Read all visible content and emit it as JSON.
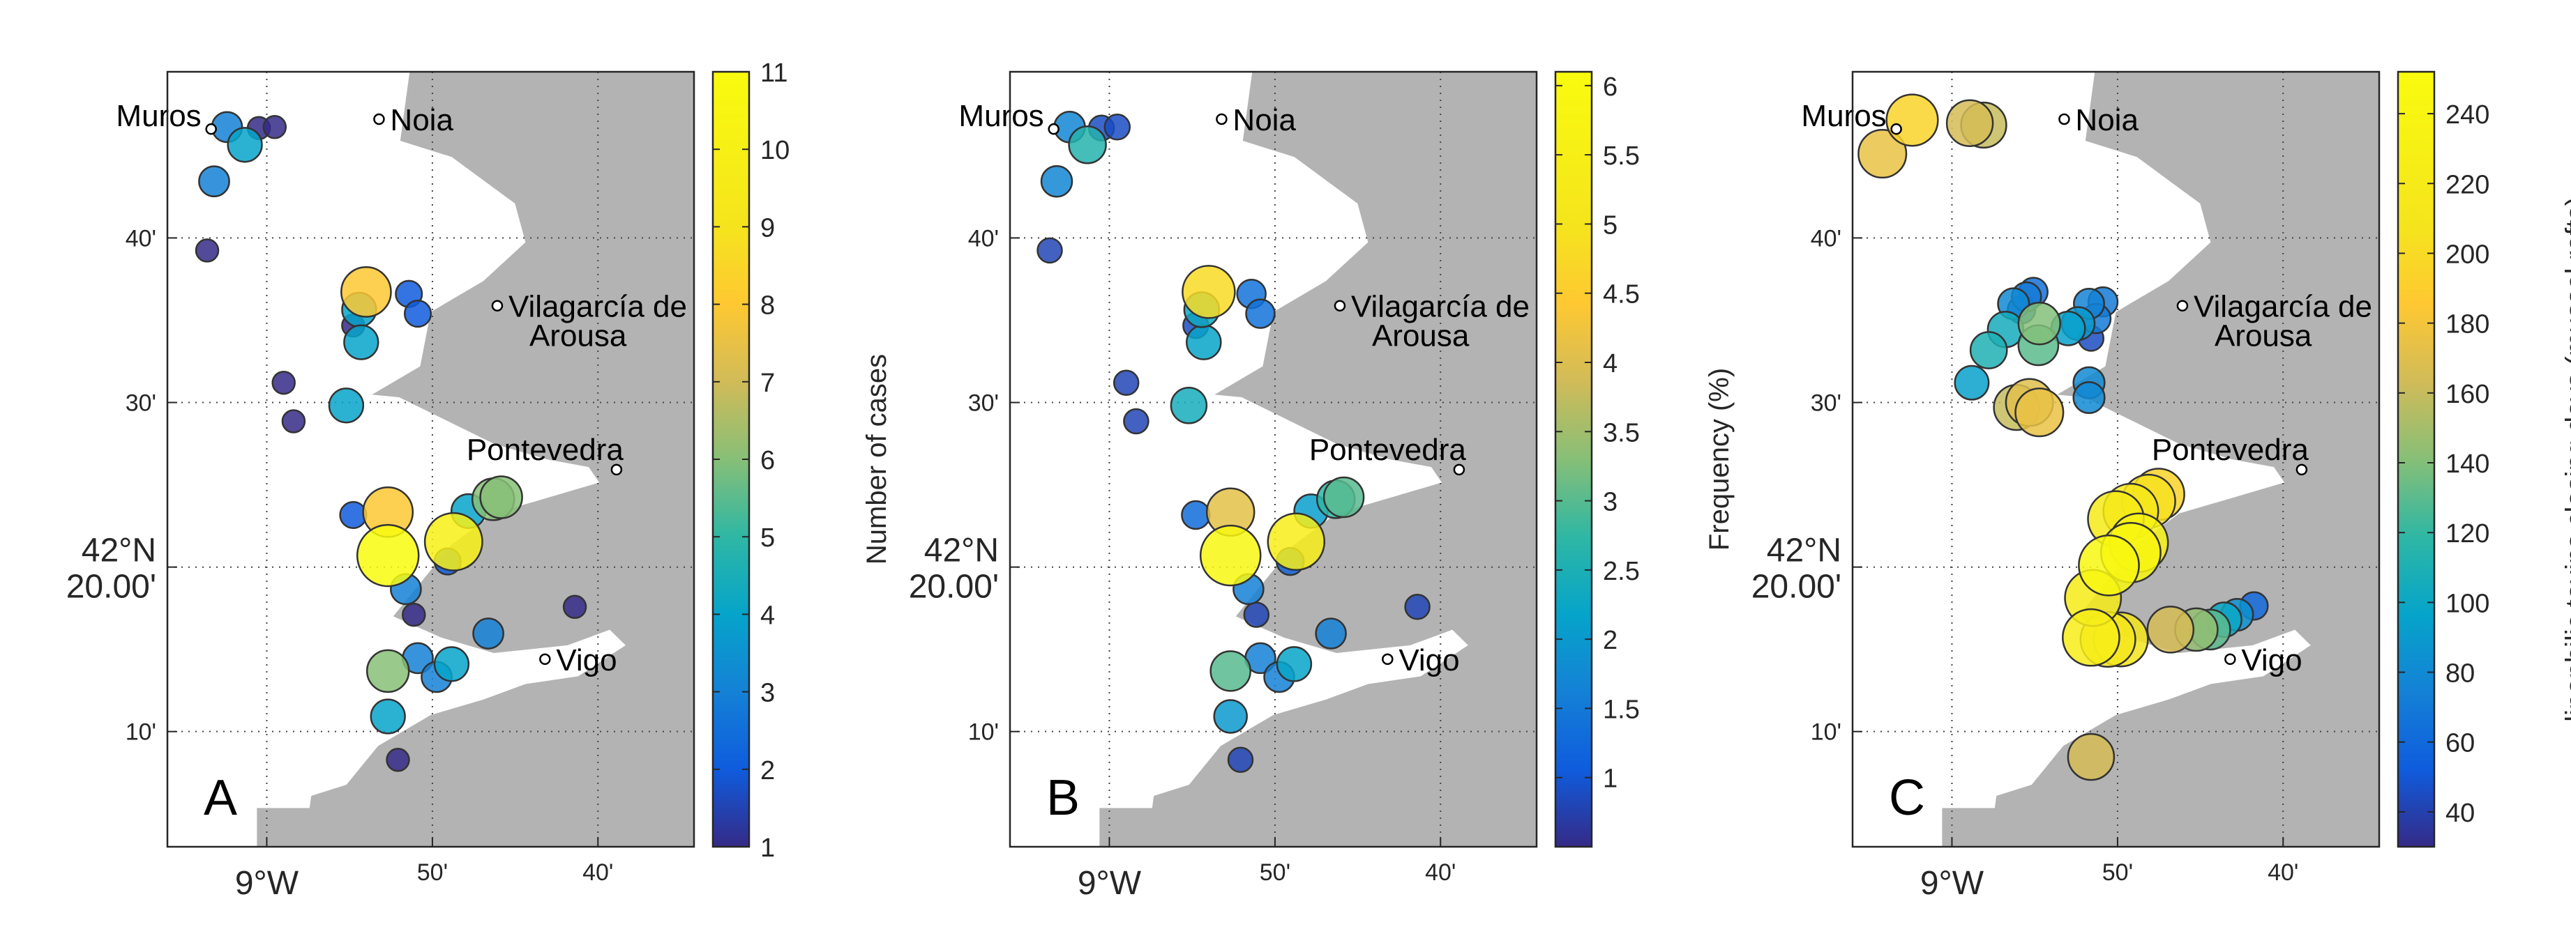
{
  "axes": {
    "lon_ticks": [
      "9°W",
      "50'",
      "40'"
    ],
    "lat_ticks": [
      "10'",
      "42°N\n20.00'",
      "30'",
      "40'"
    ],
    "lon_tick_values": [
      -9.0,
      -8.8333,
      -8.6667
    ],
    "lat_tick_values": [
      42.1667,
      42.3333,
      42.5,
      42.6667
    ],
    "xlim": [
      -9.1,
      -8.57
    ],
    "ylim": [
      42.05,
      42.835
    ],
    "grid": true,
    "land_color": "#b3b3b3",
    "sea_color": "#ffffff"
  },
  "towns": [
    {
      "name": "Muros",
      "lon": -9.056,
      "lat": 42.777,
      "label_side": "left"
    },
    {
      "name": "Noia",
      "lon": -8.887,
      "lat": 42.787,
      "label_side": "right"
    },
    {
      "name": "Vilagarcía de",
      "name2": "Arousa",
      "lon": -8.768,
      "lat": 42.598,
      "label_side": "right"
    },
    {
      "name": "Pontevedra",
      "lon": -8.648,
      "lat": 42.432,
      "label_side": "left-above"
    },
    {
      "name": "Vigo",
      "lon": -8.72,
      "lat": 42.24,
      "label_side": "right"
    }
  ],
  "chart_data": [
    {
      "type": "scatter",
      "panel": "A",
      "colorbar_label": "Number of cases",
      "colorbar_ticks": [
        1,
        2,
        3,
        4,
        5,
        6,
        7,
        8,
        9,
        10,
        11
      ],
      "clim": [
        1,
        11
      ],
      "points": [
        {
          "lon": -9.04,
          "lat": 42.779,
          "v": 3
        },
        {
          "lon": -9.022,
          "lat": 42.761,
          "v": 4
        },
        {
          "lon": -9.008,
          "lat": 42.778,
          "v": 1
        },
        {
          "lon": -8.992,
          "lat": 42.779,
          "v": 1
        },
        {
          "lon": -9.053,
          "lat": 42.724,
          "v": 3
        },
        {
          "lon": -9.06,
          "lat": 42.654,
          "v": 1
        },
        {
          "lon": -8.9,
          "lat": 42.612,
          "v": 8
        },
        {
          "lon": -8.907,
          "lat": 42.594,
          "v": 4
        },
        {
          "lon": -8.913,
          "lat": 42.578,
          "v": 1
        },
        {
          "lon": -8.905,
          "lat": 42.561,
          "v": 4
        },
        {
          "lon": -8.857,
          "lat": 42.61,
          "v": 2
        },
        {
          "lon": -8.848,
          "lat": 42.59,
          "v": 2
        },
        {
          "lon": -8.983,
          "lat": 42.52,
          "v": 1
        },
        {
          "lon": -8.973,
          "lat": 42.481,
          "v": 1
        },
        {
          "lon": -8.92,
          "lat": 42.497,
          "v": 4
        },
        {
          "lon": -8.913,
          "lat": 42.386,
          "v": 2
        },
        {
          "lon": -8.878,
          "lat": 42.389,
          "v": 8
        },
        {
          "lon": -8.878,
          "lat": 42.345,
          "v": 11
        },
        {
          "lon": -8.812,
          "lat": 42.359,
          "v": 10
        },
        {
          "lon": -8.818,
          "lat": 42.339,
          "v": 2
        },
        {
          "lon": -8.797,
          "lat": 42.39,
          "v": 4
        },
        {
          "lon": -8.772,
          "lat": 42.402,
          "v": 6
        },
        {
          "lon": -8.764,
          "lat": 42.404,
          "v": 6
        },
        {
          "lon": -8.86,
          "lat": 42.311,
          "v": 3
        },
        {
          "lon": -8.852,
          "lat": 42.285,
          "v": 1
        },
        {
          "lon": -8.777,
          "lat": 42.266,
          "v": 3
        },
        {
          "lon": -8.69,
          "lat": 42.293,
          "v": 1
        },
        {
          "lon": -8.878,
          "lat": 42.228,
          "v": 6
        },
        {
          "lon": -8.848,
          "lat": 42.241,
          "v": 3
        },
        {
          "lon": -8.829,
          "lat": 42.222,
          "v": 3
        },
        {
          "lon": -8.814,
          "lat": 42.235,
          "v": 4
        },
        {
          "lon": -8.878,
          "lat": 42.182,
          "v": 4
        },
        {
          "lon": -8.868,
          "lat": 42.138,
          "v": 1
        }
      ]
    },
    {
      "type": "scatter",
      "panel": "B",
      "colorbar_label": "Frequency (%)",
      "colorbar_ticks": [
        1,
        1.5,
        2,
        2.5,
        3,
        3.5,
        4,
        4.5,
        5,
        5.5,
        6
      ],
      "clim": [
        0.5,
        6.1
      ],
      "points": [
        {
          "lon": -9.04,
          "lat": 42.779,
          "v": 1.7
        },
        {
          "lon": -9.022,
          "lat": 42.761,
          "v": 2.6
        },
        {
          "lon": -9.008,
          "lat": 42.778,
          "v": 0.9
        },
        {
          "lon": -8.992,
          "lat": 42.779,
          "v": 0.9
        },
        {
          "lon": -9.053,
          "lat": 42.724,
          "v": 1.7
        },
        {
          "lon": -9.06,
          "lat": 42.654,
          "v": 0.8
        },
        {
          "lon": -8.9,
          "lat": 42.612,
          "v": 4.8
        },
        {
          "lon": -8.907,
          "lat": 42.594,
          "v": 2.3
        },
        {
          "lon": -8.913,
          "lat": 42.578,
          "v": 0.9
        },
        {
          "lon": -8.905,
          "lat": 42.561,
          "v": 2.2
        },
        {
          "lon": -8.857,
          "lat": 42.61,
          "v": 1.4
        },
        {
          "lon": -8.848,
          "lat": 42.59,
          "v": 1.4
        },
        {
          "lon": -8.983,
          "lat": 42.52,
          "v": 0.8
        },
        {
          "lon": -8.973,
          "lat": 42.481,
          "v": 0.8
        },
        {
          "lon": -8.92,
          "lat": 42.497,
          "v": 2.4
        },
        {
          "lon": -8.913,
          "lat": 42.386,
          "v": 1.3
        },
        {
          "lon": -8.878,
          "lat": 42.389,
          "v": 4.1
        },
        {
          "lon": -8.878,
          "lat": 42.345,
          "v": 5.9
        },
        {
          "lon": -8.812,
          "lat": 42.359,
          "v": 5.4
        },
        {
          "lon": -8.818,
          "lat": 42.339,
          "v": 1.2
        },
        {
          "lon": -8.797,
          "lat": 42.39,
          "v": 2.1
        },
        {
          "lon": -8.772,
          "lat": 42.402,
          "v": 2.7
        },
        {
          "lon": -8.764,
          "lat": 42.404,
          "v": 3.0
        },
        {
          "lon": -8.86,
          "lat": 42.311,
          "v": 1.6
        },
        {
          "lon": -8.852,
          "lat": 42.285,
          "v": 0.8
        },
        {
          "lon": -8.777,
          "lat": 42.266,
          "v": 1.6
        },
        {
          "lon": -8.69,
          "lat": 42.293,
          "v": 0.8
        },
        {
          "lon": -8.878,
          "lat": 42.228,
          "v": 3.0
        },
        {
          "lon": -8.848,
          "lat": 42.241,
          "v": 1.6
        },
        {
          "lon": -8.829,
          "lat": 42.222,
          "v": 1.6
        },
        {
          "lon": -8.814,
          "lat": 42.235,
          "v": 2.2
        },
        {
          "lon": -8.878,
          "lat": 42.182,
          "v": 2.0
        },
        {
          "lon": -8.868,
          "lat": 42.138,
          "v": 0.8
        }
      ]
    },
    {
      "type": "scatter",
      "panel": "C",
      "colorbar_label": "lipophilic toxins closing days (mussel rafts)",
      "colorbar_ticks": [
        40,
        60,
        80,
        100,
        120,
        140,
        160,
        180,
        200,
        220,
        240
      ],
      "clim": [
        30,
        252
      ],
      "points": [
        {
          "lon": -9.04,
          "lat": 42.786,
          "v": 195
        },
        {
          "lon": -9.07,
          "lat": 42.752,
          "v": 175
        },
        {
          "lon": -8.982,
          "lat": 42.783,
          "v": 165
        },
        {
          "lon": -8.968,
          "lat": 42.781,
          "v": 160
        },
        {
          "lon": -8.98,
          "lat": 42.52,
          "v": 95
        },
        {
          "lon": -8.963,
          "lat": 42.553,
          "v": 110
        },
        {
          "lon": -8.946,
          "lat": 42.574,
          "v": 105
        },
        {
          "lon": -8.938,
          "lat": 42.6,
          "v": 80
        },
        {
          "lon": -8.925,
          "lat": 42.607,
          "v": 70
        },
        {
          "lon": -8.918,
          "lat": 42.612,
          "v": 65
        },
        {
          "lon": -8.93,
          "lat": 42.594,
          "v": 60
        },
        {
          "lon": -8.912,
          "lat": 42.58,
          "v": 140
        },
        {
          "lon": -8.913,
          "lat": 42.558,
          "v": 130
        },
        {
          "lon": -8.883,
          "lat": 42.575,
          "v": 95
        },
        {
          "lon": -8.873,
          "lat": 42.58,
          "v": 90
        },
        {
          "lon": -8.862,
          "lat": 42.6,
          "v": 75
        },
        {
          "lon": -8.848,
          "lat": 42.602,
          "v": 70
        },
        {
          "lon": -8.855,
          "lat": 42.585,
          "v": 70
        },
        {
          "lon": -8.86,
          "lat": 42.565,
          "v": 45
        },
        {
          "lon": -8.862,
          "lat": 42.52,
          "v": 80
        },
        {
          "lon": -8.862,
          "lat": 42.505,
          "v": 80
        },
        {
          "lon": -8.935,
          "lat": 42.495,
          "v": 160
        },
        {
          "lon": -8.922,
          "lat": 42.5,
          "v": 170
        },
        {
          "lon": -8.912,
          "lat": 42.49,
          "v": 175
        },
        {
          "lon": -8.792,
          "lat": 42.407,
          "v": 195
        },
        {
          "lon": -8.802,
          "lat": 42.4,
          "v": 205
        },
        {
          "lon": -8.82,
          "lat": 42.39,
          "v": 215
        },
        {
          "lon": -8.835,
          "lat": 42.382,
          "v": 220
        },
        {
          "lon": -8.812,
          "lat": 42.358,
          "v": 235
        },
        {
          "lon": -8.82,
          "lat": 42.348,
          "v": 242
        },
        {
          "lon": -8.842,
          "lat": 42.335,
          "v": 245
        },
        {
          "lon": -8.858,
          "lat": 42.302,
          "v": 222
        },
        {
          "lon": -8.86,
          "lat": 42.262,
          "v": 225
        },
        {
          "lon": -8.843,
          "lat": 42.26,
          "v": 215
        },
        {
          "lon": -8.83,
          "lat": 42.26,
          "v": 210
        },
        {
          "lon": -8.78,
          "lat": 42.27,
          "v": 165
        },
        {
          "lon": -8.754,
          "lat": 42.27,
          "v": 145
        },
        {
          "lon": -8.74,
          "lat": 42.27,
          "v": 130
        },
        {
          "lon": -8.726,
          "lat": 42.28,
          "v": 100
        },
        {
          "lon": -8.713,
          "lat": 42.285,
          "v": 85
        },
        {
          "lon": -8.696,
          "lat": 42.294,
          "v": 60
        },
        {
          "lon": -8.86,
          "lat": 42.141,
          "v": 165
        }
      ]
    }
  ]
}
